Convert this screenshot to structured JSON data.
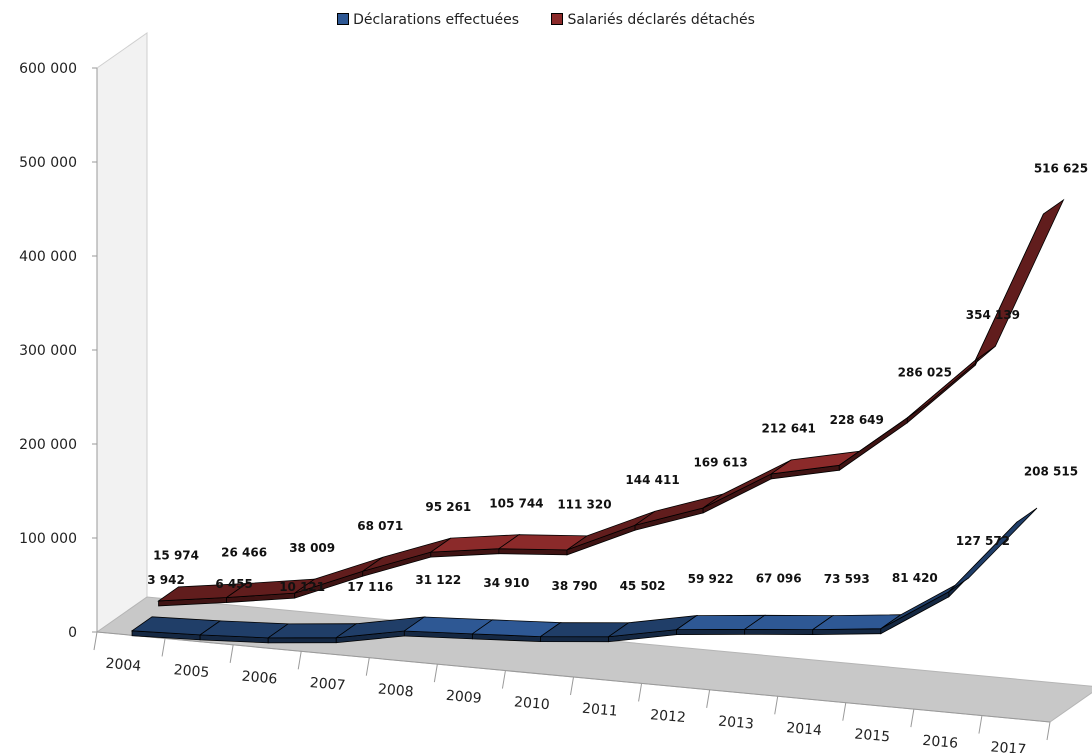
{
  "chart_data": {
    "type": "line",
    "style": "3d-ribbon",
    "categories": [
      "2004",
      "2005",
      "2006",
      "2007",
      "2008",
      "2009",
      "2010",
      "2011",
      "2012",
      "2013",
      "2014",
      "2015",
      "2016",
      "2017"
    ],
    "series": [
      {
        "name": "Déclarations effectuées",
        "color": "#2e5894",
        "values": [
          3942,
          6455,
          10121,
          17116,
          31122,
          34910,
          38790,
          45502,
          59922,
          67096,
          73593,
          81420,
          127572,
          208515
        ],
        "labels": [
          "3 942",
          "6 455",
          "10 121",
          "17 116",
          "31 122",
          "34 910",
          "38 790",
          "45 502",
          "59 922",
          "67 096",
          "73 593",
          "81 420",
          "127 572",
          "208 515"
        ]
      },
      {
        "name": "Salariés déclarés détachés",
        "color": "#8b2a2a",
        "values": [
          15974,
          26466,
          38009,
          68071,
          95261,
          105744,
          111320,
          144411,
          169613,
          212641,
          228649,
          286025,
          354139,
          516625
        ],
        "labels": [
          "15 974",
          "26 466",
          "38 009",
          "68 071",
          "95 261",
          "105 744",
          "111 320",
          "144 411",
          "169 613",
          "212 641",
          "228 649",
          "286 025",
          "354 139",
          "516 625"
        ]
      }
    ],
    "yticks": [
      "0",
      "100 000",
      "200 000",
      "300 000",
      "400 000",
      "500 000",
      "600 000"
    ],
    "ylim": [
      0,
      600000
    ],
    "legend_position": "top",
    "grid": false
  }
}
